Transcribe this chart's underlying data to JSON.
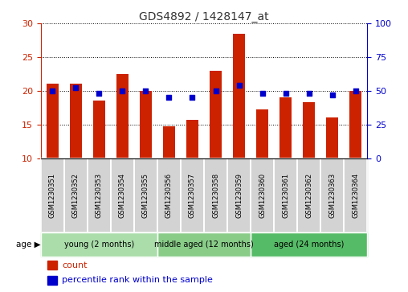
{
  "title": "GDS4892 / 1428147_at",
  "samples": [
    "GSM1230351",
    "GSM1230352",
    "GSM1230353",
    "GSM1230354",
    "GSM1230355",
    "GSM1230356",
    "GSM1230357",
    "GSM1230358",
    "GSM1230359",
    "GSM1230360",
    "GSM1230361",
    "GSM1230362",
    "GSM1230363",
    "GSM1230364"
  ],
  "counts": [
    21.0,
    21.0,
    18.5,
    22.5,
    20.0,
    14.7,
    15.7,
    23.0,
    28.5,
    17.2,
    19.0,
    18.3,
    16.0,
    20.0
  ],
  "percentiles": [
    50,
    52,
    48,
    50,
    50,
    45,
    45,
    50,
    54,
    48,
    48,
    48,
    47,
    50
  ],
  "ylim_left": [
    10,
    30
  ],
  "ylim_right": [
    0,
    100
  ],
  "yticks_left": [
    10,
    15,
    20,
    25,
    30
  ],
  "yticks_right": [
    0,
    25,
    50,
    75,
    100
  ],
  "bar_color": "#CC2200",
  "dot_color": "#0000CC",
  "bar_width": 0.5,
  "groups": [
    {
      "label": "young (2 months)",
      "start": 0,
      "end": 5
    },
    {
      "label": "middle aged (12 months)",
      "start": 5,
      "end": 9
    },
    {
      "label": "aged (24 months)",
      "start": 9,
      "end": 14
    }
  ],
  "group_colors": [
    "#AADDAA",
    "#88CC88",
    "#55BB66"
  ],
  "age_label": "age",
  "legend_count_label": "count",
  "legend_percentile_label": "percentile rank within the sample",
  "grid_color": "#000000",
  "background_color": "#FFFFFF",
  "tick_color_left": "#CC2200",
  "tick_color_right": "#0000CC",
  "cell_color": "#D3D3D3",
  "cell_border_color": "#FFFFFF"
}
